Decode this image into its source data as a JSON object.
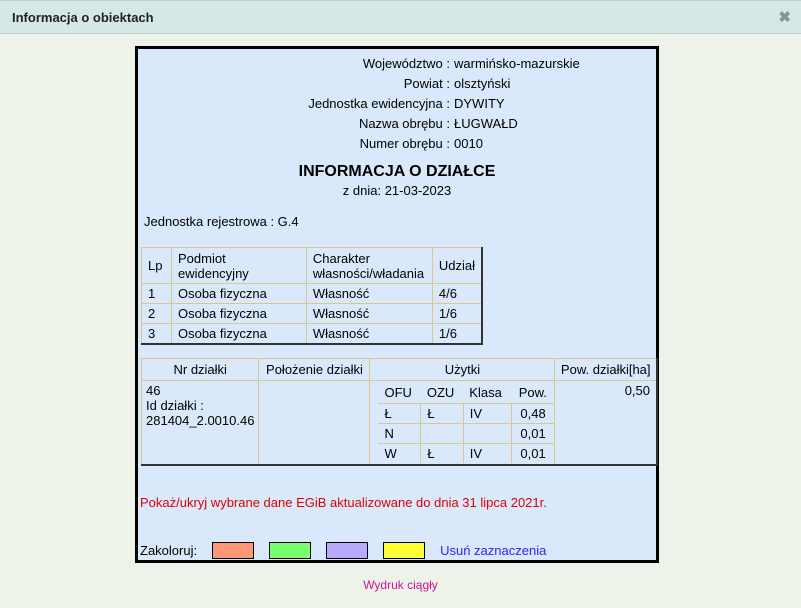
{
  "window": {
    "title": "Informacja o obiektach",
    "close_icon": "close-icon"
  },
  "meta": [
    {
      "label": "Województwo :",
      "value": "warmińsko-mazurskie"
    },
    {
      "label": "Powiat :",
      "value": "olsztyński"
    },
    {
      "label": "Jednostka ewidencyjna :",
      "value": "DYWITY"
    },
    {
      "label": "Nazwa obrębu :",
      "value": "ŁUGWAŁD"
    },
    {
      "label": "Numer obrębu :",
      "value": "0010"
    }
  ],
  "title": "INFORMACJA O DZIAŁCE",
  "date": "z dnia: 21-03-2023",
  "jednostka": "Jednostka rejestrowa : G.4",
  "owners": {
    "headers": [
      "Lp",
      "Podmiot ewidencyjny",
      "Charakter własności/władania",
      "Udział"
    ],
    "rows": [
      [
        "1",
        "Osoba fizyczna",
        "Własność",
        "4/6"
      ],
      [
        "2",
        "Osoba fizyczna",
        "Własność",
        "1/6"
      ],
      [
        "3",
        "Osoba fizyczna",
        "Własność",
        "1/6"
      ]
    ]
  },
  "parcel": {
    "headers": [
      "Nr działki",
      "Położenie działki",
      "Użytki",
      "Pow. działki[ha]"
    ],
    "nr": "46",
    "id_label": "Id działki :",
    "id": "281404_2.0010.46",
    "polozenie": "",
    "pow": "0,50",
    "uzytki_headers": [
      "OFU",
      "OZU",
      "Klasa",
      "Pow."
    ],
    "uzytki": [
      [
        "Ł",
        "Ł",
        "IV",
        "0,48"
      ],
      [
        "N",
        "",
        "",
        "0,01"
      ],
      [
        "W",
        "Ł",
        "IV",
        "0,01"
      ]
    ]
  },
  "notice": "Pokaż/ukryj wybrane dane EGiB aktualizowane do dnia 31 lipca 2021r.",
  "colorize": {
    "label": "Zakoloruj:",
    "colors": [
      "#ff9878",
      "#77ff6e",
      "#baaaff",
      "#ffff33"
    ],
    "clear": "Usuń zaznaczenia"
  },
  "print": "Wydruk ciągły"
}
